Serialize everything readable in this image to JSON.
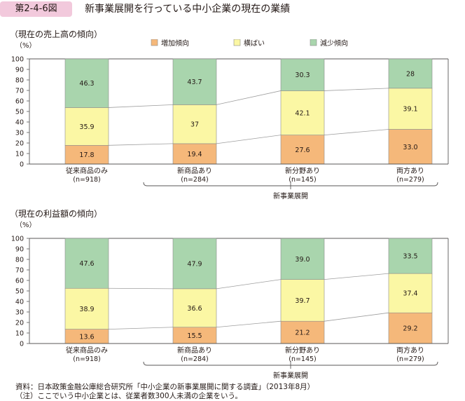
{
  "header": {
    "figure_no": "第2-4-6図",
    "title": "新事業展開を行っている中小企業の現在の業績"
  },
  "colors": {
    "increase": "#f5b87a",
    "flat": "#fbf7a4",
    "decrease": "#a9d5ad",
    "connector": "#9e9e9e",
    "axis": "#595757",
    "badge": "#f2c9dc"
  },
  "legend": [
    "増加傾向",
    "横ばい",
    "減少傾向"
  ],
  "chart_data": [
    {
      "type": "bar",
      "stacked": true,
      "title": "（現在の売上高の傾向）",
      "ylabel": "（%）",
      "ylim": [
        0,
        100
      ],
      "yticks": [
        "0",
        "10",
        "20",
        "30",
        "40",
        "50",
        "60",
        "70",
        "80",
        "90",
        "100"
      ],
      "categories": [
        "従来商品のみ",
        "新商品あり",
        "新分野あり",
        "両方あり"
      ],
      "counts": [
        "(n=918)",
        "(n=284)",
        "(n=145)",
        "(n=279)"
      ],
      "group_label": "新事業展開",
      "series": [
        {
          "name": "増加傾向",
          "values": [
            17.8,
            19.4,
            27.6,
            33.0
          ],
          "labels": [
            "17.8",
            "19.4",
            "27.6",
            "33.0"
          ]
        },
        {
          "name": "横ばい",
          "values": [
            35.9,
            37,
            42.1,
            39.1
          ],
          "labels": [
            "35.9",
            "37",
            "42.1",
            "39.1"
          ]
        },
        {
          "name": "減少傾向",
          "values": [
            46.3,
            43.7,
            30.3,
            28
          ],
          "labels": [
            "46.3",
            "43.7",
            "30.3",
            "28"
          ]
        }
      ]
    },
    {
      "type": "bar",
      "stacked": true,
      "title": "（現在の利益額の傾向）",
      "ylabel": "（%）",
      "ylim": [
        0,
        100
      ],
      "yticks": [
        "0",
        "10",
        "20",
        "30",
        "40",
        "50",
        "60",
        "70",
        "80",
        "90",
        "100"
      ],
      "categories": [
        "従来商品のみ",
        "新商品あり",
        "新分野あり",
        "両方あり"
      ],
      "counts": [
        "(n=918)",
        "(n=284)",
        "(n=145)",
        "(n=279)"
      ],
      "group_label": "新事業展開",
      "series": [
        {
          "name": "増加傾向",
          "values": [
            13.6,
            15.5,
            21.2,
            29.2
          ],
          "labels": [
            "13.6",
            "15.5",
            "21.2",
            "29.2"
          ]
        },
        {
          "name": "横ばい",
          "values": [
            38.9,
            36.6,
            39.7,
            37.4
          ],
          "labels": [
            "38.9",
            "36.6",
            "39.7",
            "37.4"
          ]
        },
        {
          "name": "減少傾向",
          "values": [
            47.6,
            47.9,
            39.0,
            33.5
          ],
          "labels": [
            "47.6",
            "47.9",
            "39.0",
            "33.5"
          ]
        }
      ]
    }
  ],
  "footnotes": [
    "資料：日本政策金融公庫総合研究所「中小企業の新事業展開に関する調査」（2013年8月）",
    "（注）ここでいう中小企業とは、従業者数300人未満の企業をいう。"
  ]
}
